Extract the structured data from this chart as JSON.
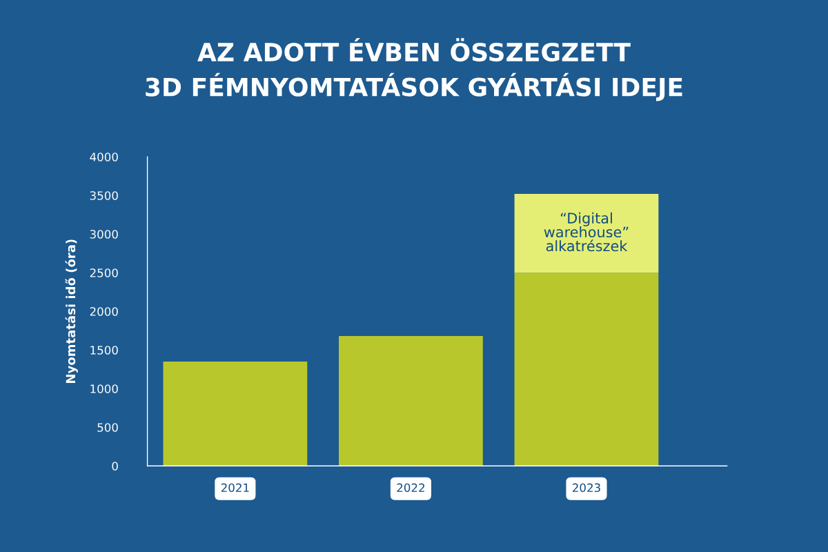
{
  "chart_data": {
    "type": "bar",
    "title": "AZ ADOTT ÉVBEN ÖSSZEGZETT\n3D FÉMNYOMTATÁSOK GYÁRTÁSI IDEJE",
    "ylabel": "Nyomtatási idő (óra)",
    "categories": [
      "2021",
      "2022",
      "2023"
    ],
    "stacked": true,
    "series": [
      {
        "color": "#b8c82c",
        "values": [
          1350,
          1680,
          2500
        ]
      },
      {
        "name": "“Digital\nwarehouse”\nalkatrészek",
        "color": "#e5ee74",
        "values": [
          null,
          null,
          1020
        ]
      }
    ],
    "ylim": [
      0,
      4000
    ],
    "yticks": [
      0,
      500,
      1000,
      1500,
      2000,
      2500,
      3000,
      3500,
      4000
    ],
    "grid": false,
    "legend": false
  }
}
